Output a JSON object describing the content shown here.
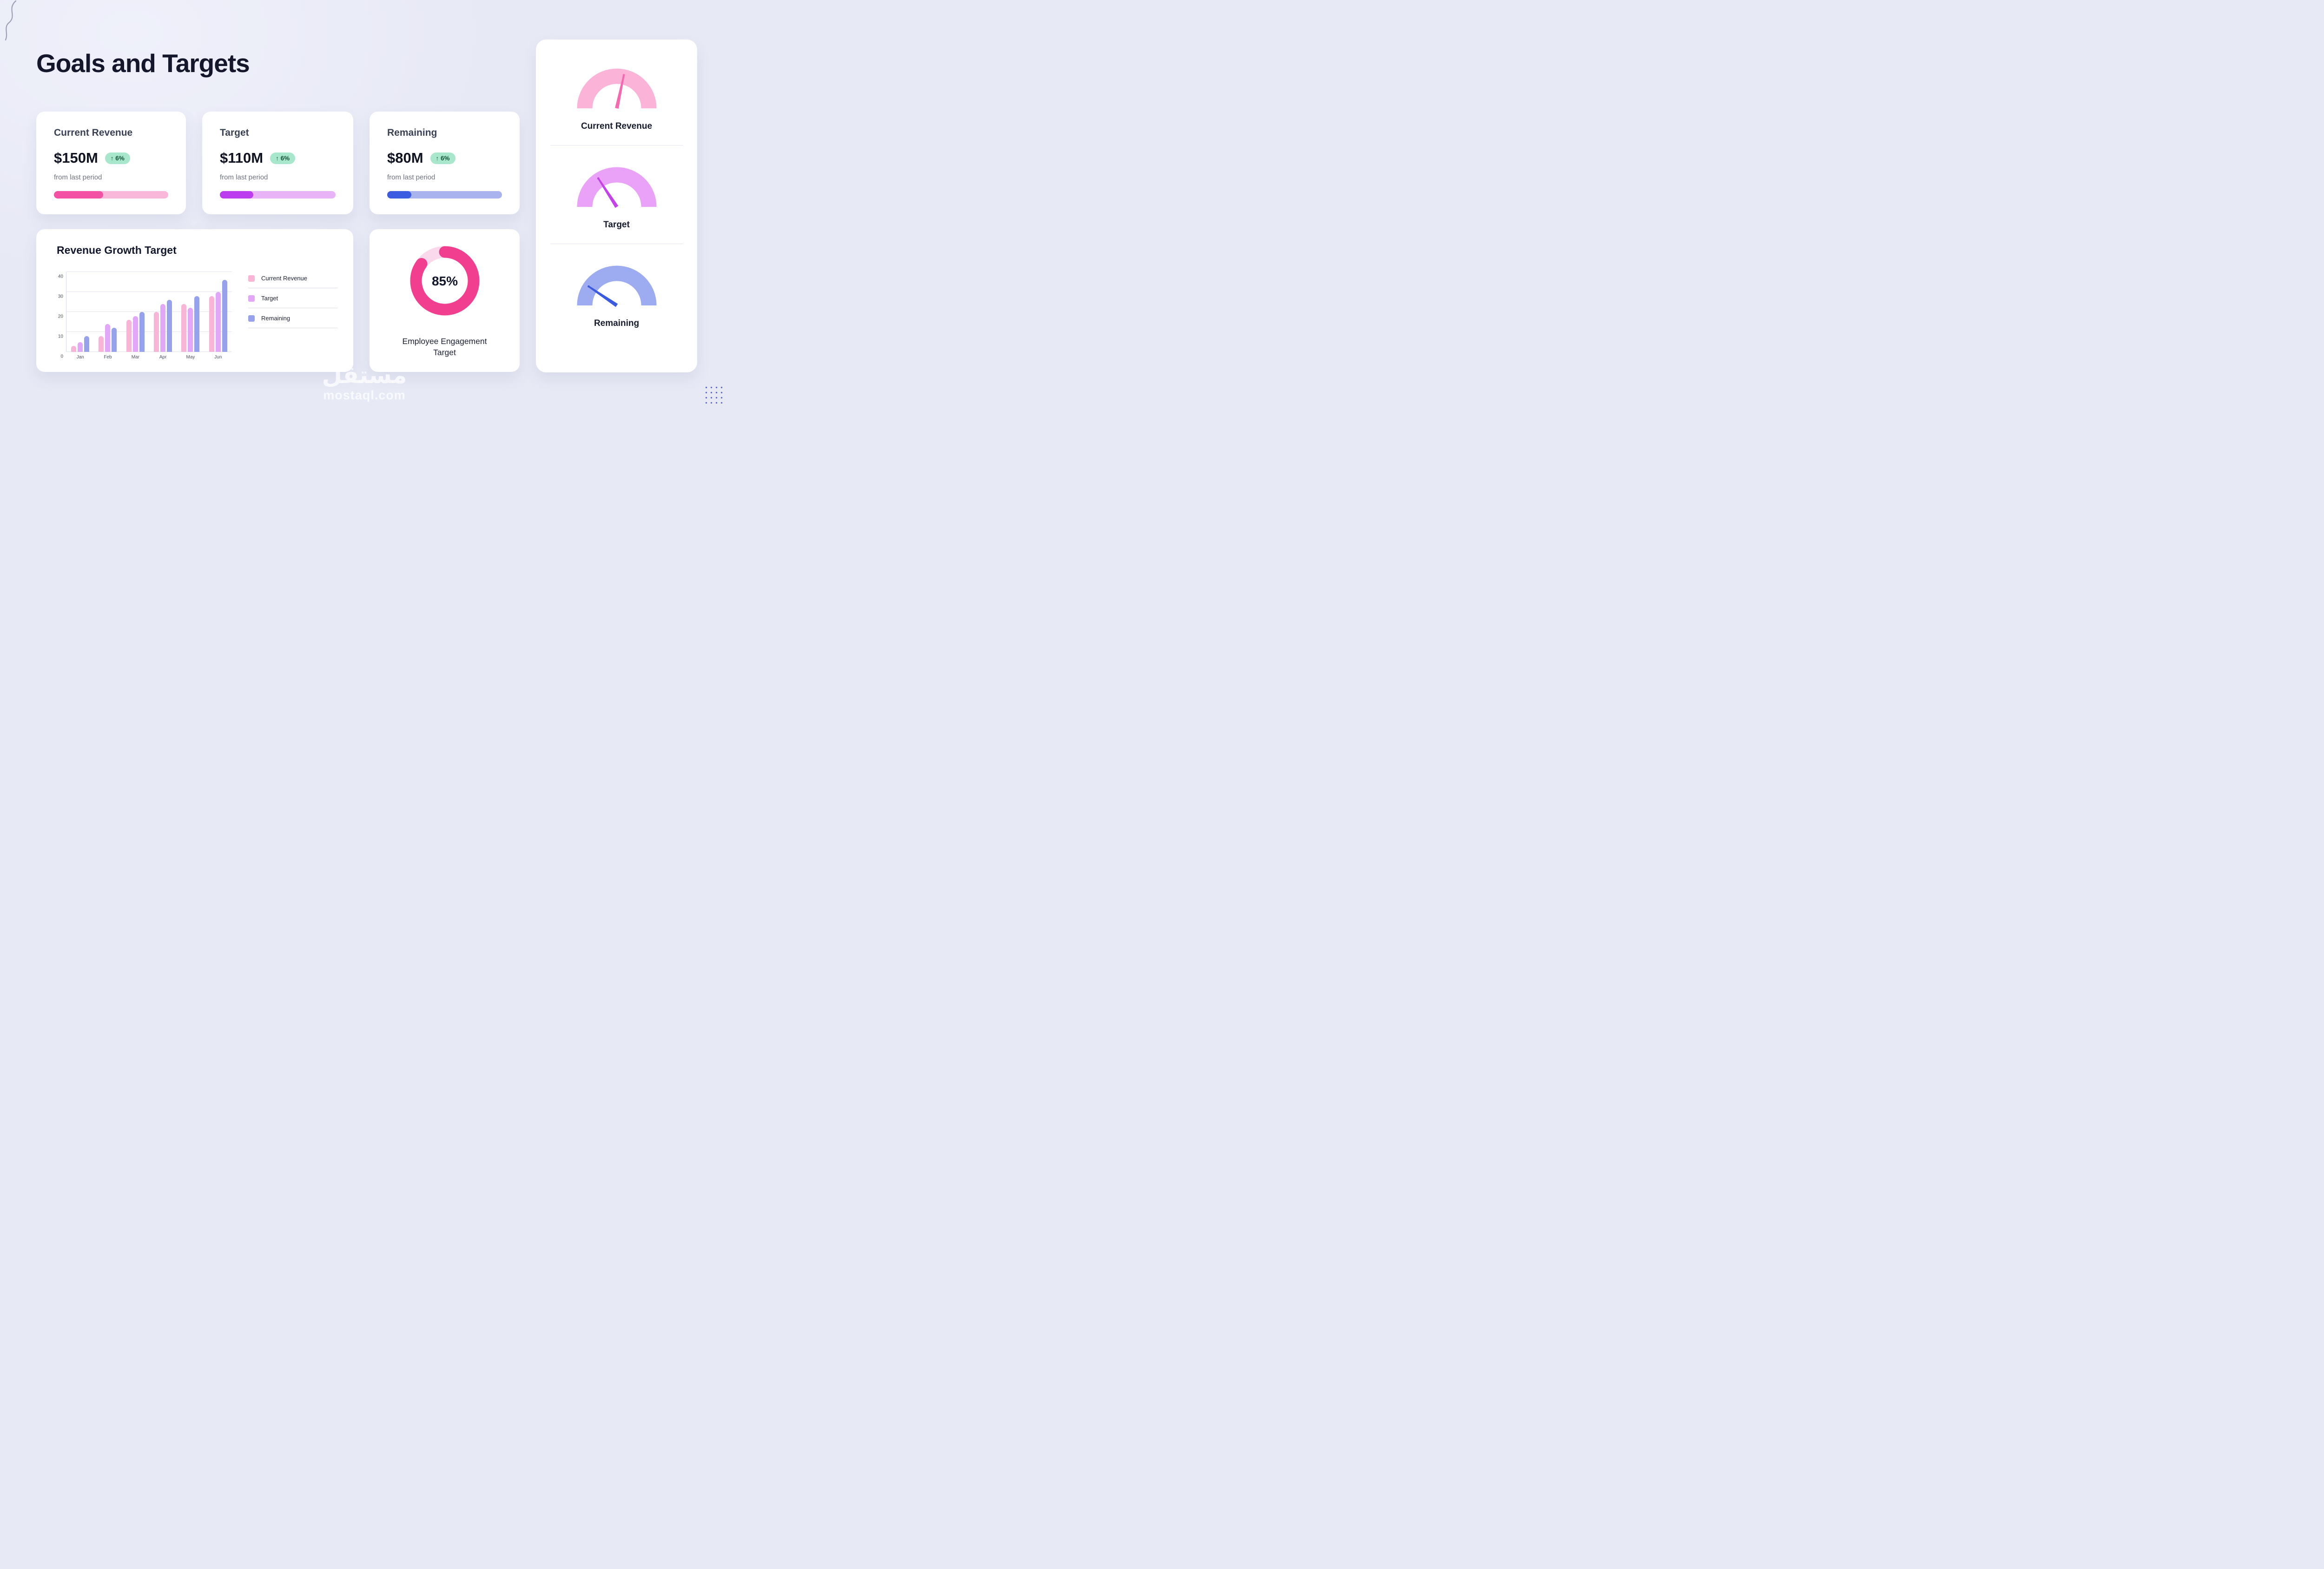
{
  "page": {
    "title": "Goals and Targets"
  },
  "kpi_cards": [
    {
      "title": "Current Revenue",
      "value": "$150M",
      "badge": "↑ 6%",
      "subtitle": "from last period",
      "progress_pct": 43,
      "track_color": "#f9b8d9",
      "fill_color": "#f351a4"
    },
    {
      "title": "Target",
      "value": "$110M",
      "badge": "↑ 6%",
      "subtitle": "from last period",
      "progress_pct": 29,
      "track_color": "#e9b4f7",
      "fill_color": "#bc3cf0"
    },
    {
      "title": "Remaining",
      "value": "$80M",
      "badge": "↑ 6%",
      "subtitle": "from last period",
      "progress_pct": 21,
      "track_color": "#a9b4ee",
      "fill_color": "#3b5be0"
    }
  ],
  "chart_data": [
    {
      "type": "bar",
      "title": "Revenue Growth Target",
      "categories": [
        "Jan",
        "Feb",
        "Mar",
        "Apr",
        "May",
        "Jun"
      ],
      "series": [
        {
          "name": "Current Revenue",
          "color": "#f8b5d6",
          "values": [
            3,
            8,
            16,
            20,
            24,
            28
          ]
        },
        {
          "name": "Target",
          "color": "#e2a7f6",
          "values": [
            5,
            14,
            18,
            24,
            22,
            30
          ]
        },
        {
          "name": "Remaining",
          "color": "#96a2ec",
          "values": [
            8,
            12,
            20,
            26,
            28,
            36
          ]
        }
      ],
      "ylim": [
        0,
        40
      ],
      "yticks": [
        0,
        10,
        20,
        30,
        40
      ],
      "grid": true,
      "legend_position": "right"
    },
    {
      "type": "pie",
      "variant": "donut",
      "percent": 85,
      "center_label": "85%",
      "caption": "Employee Engagement Target",
      "color": "#f23e8e",
      "track_color": "#fbd9ec"
    },
    {
      "type": "gauge-group",
      "gauges": [
        {
          "label": "Current Revenue",
          "arc_color": "#fbb3d8",
          "needle_color": "#f569b1",
          "needle_angle": 12
        },
        {
          "label": "Target",
          "arc_color": "#e9a2f8",
          "needle_color": "#c443e8",
          "needle_angle": -33
        },
        {
          "label": "Remaining",
          "arc_color": "#9dabf1",
          "needle_color": "#3a5be0",
          "needle_angle": -56
        }
      ]
    }
  ],
  "watermark": {
    "line1": "مستقل",
    "line2": "mostaql.com"
  }
}
